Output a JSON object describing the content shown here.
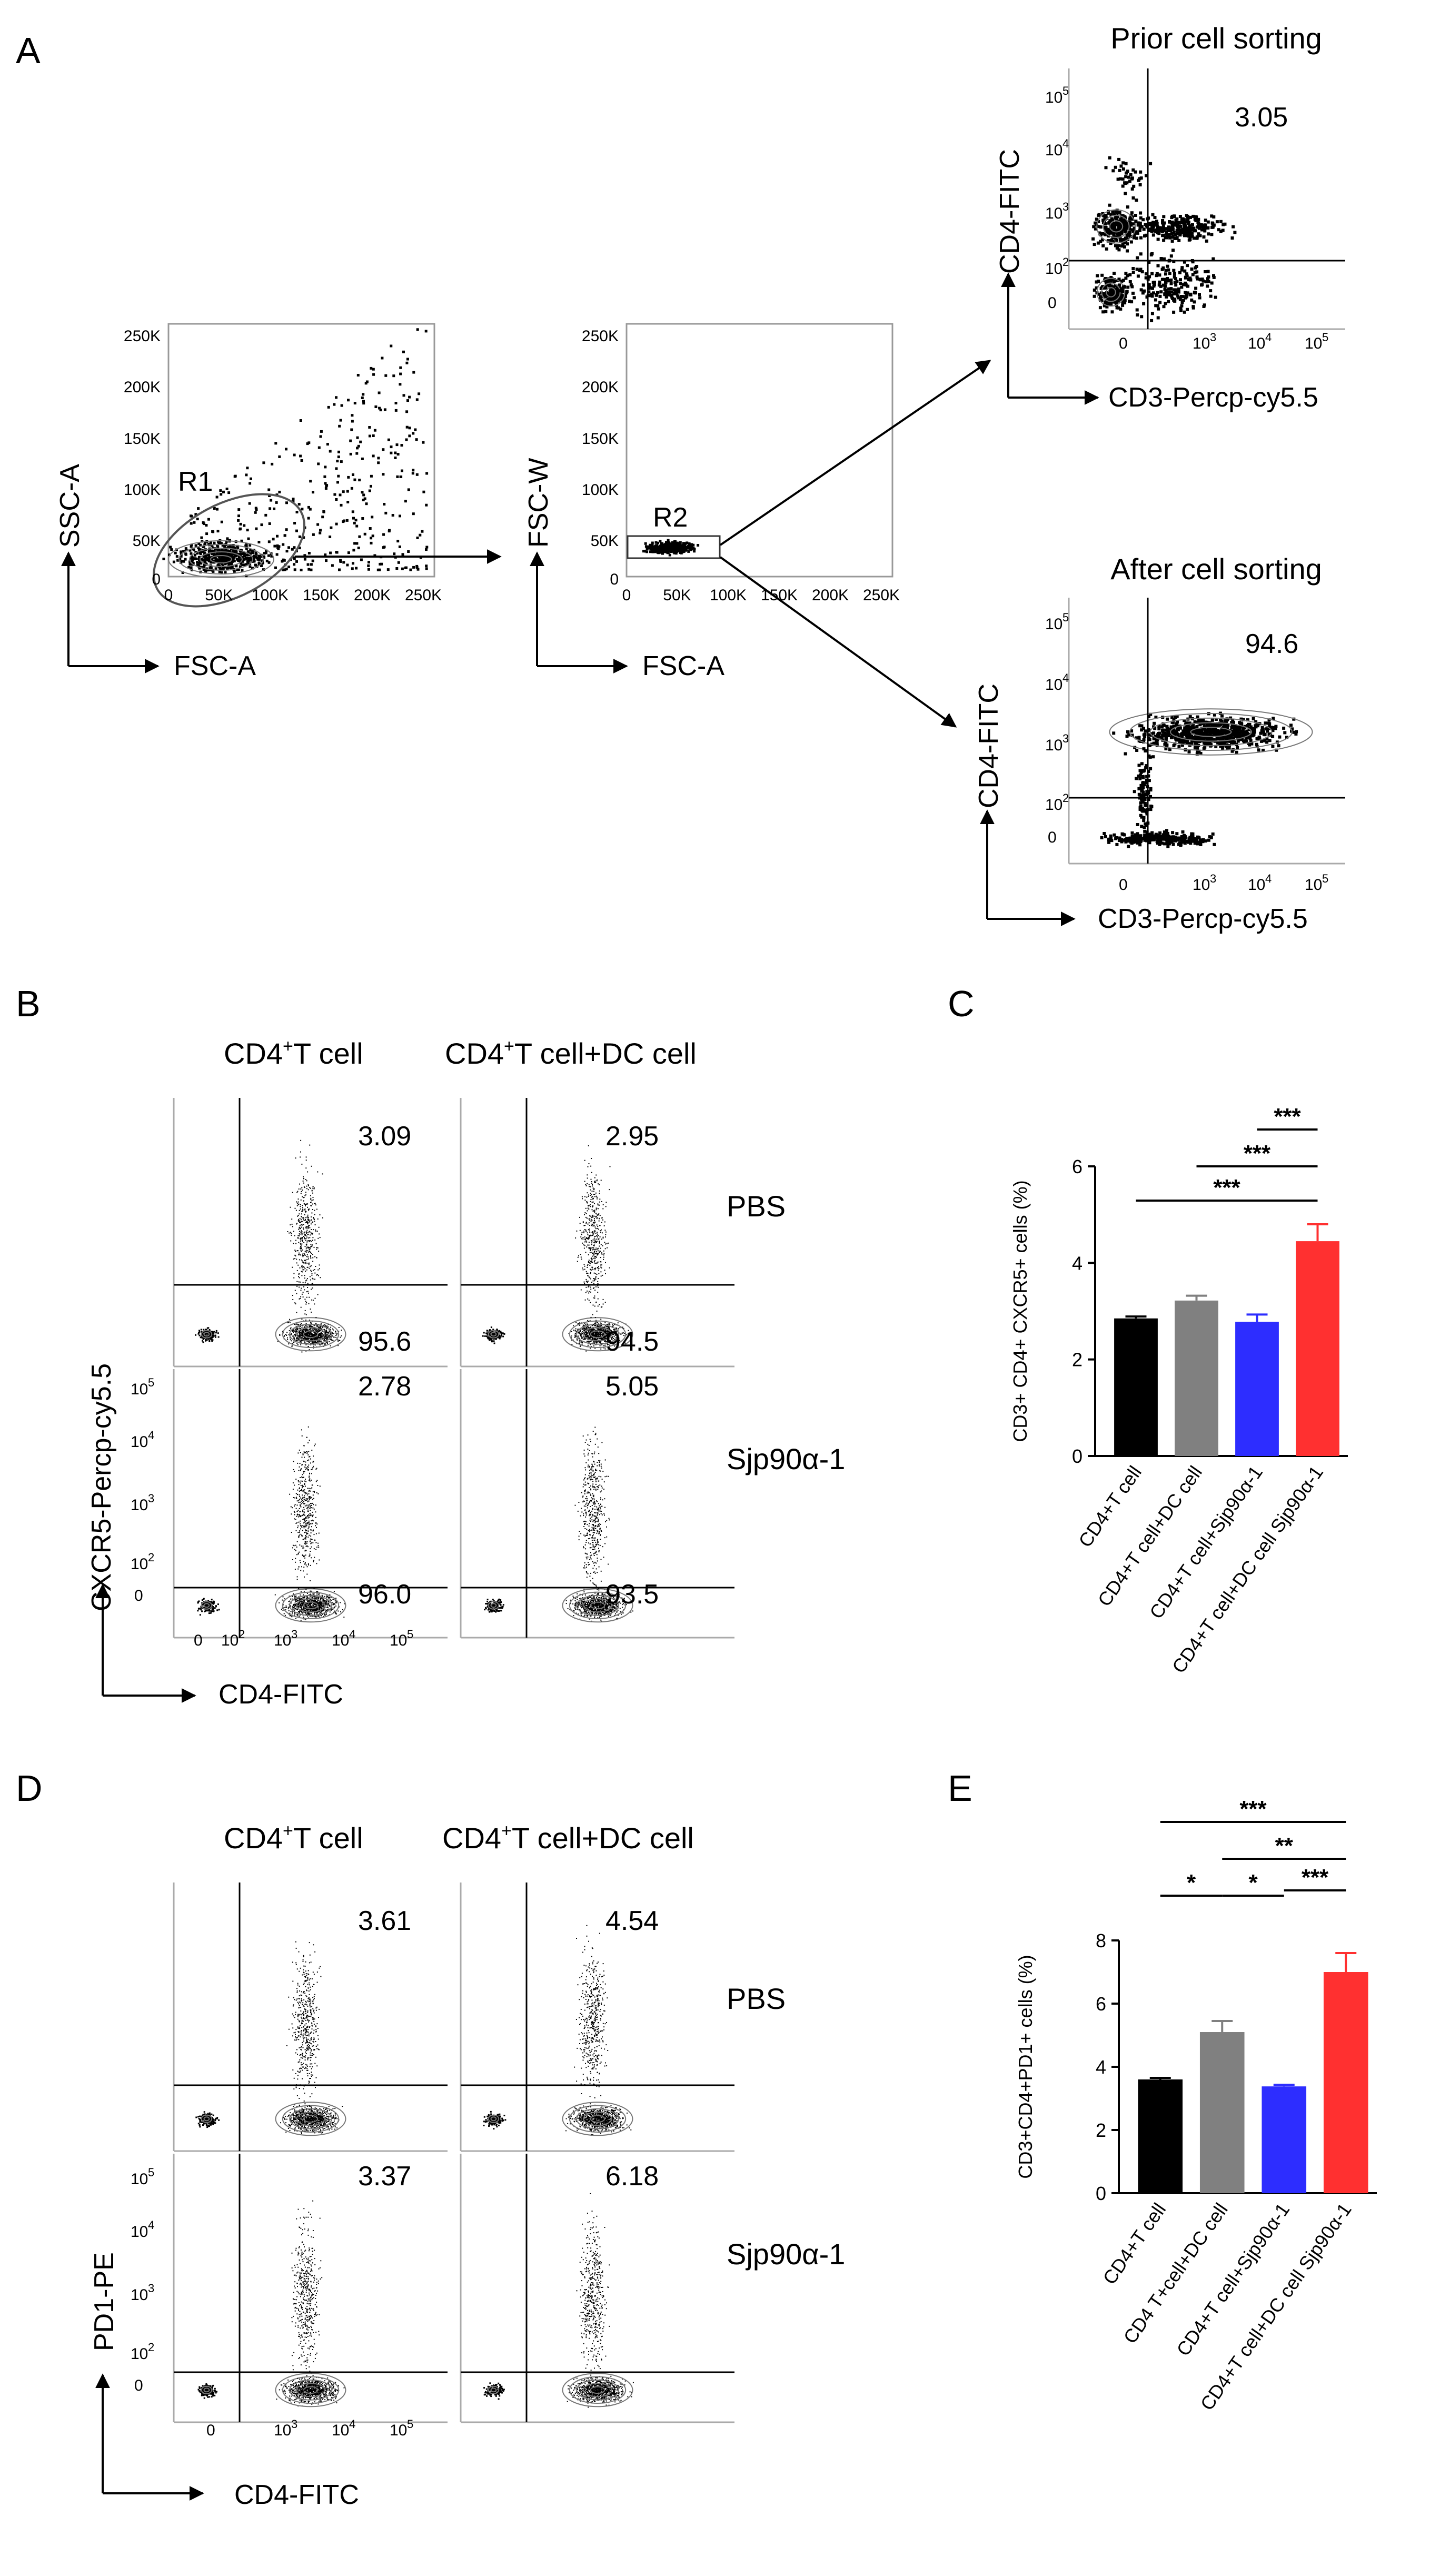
{
  "panel_labels": {
    "a": "A",
    "b": "B",
    "c": "C",
    "d": "D",
    "e": "E"
  },
  "panel_a": {
    "plot1": {
      "xlabel": "FSC-A",
      "ylabel": "SSC-A",
      "gate": "R1",
      "yticks": [
        "250K",
        "200K",
        "150K",
        "100K",
        "50K",
        "0"
      ],
      "xticks": [
        "0",
        "50K",
        "100K",
        "150K",
        "200K",
        "250K"
      ]
    },
    "plot2": {
      "xlabel": "FSC-A",
      "ylabel": "FSC-W",
      "gate": "R2",
      "yticks": [
        "250K",
        "200K",
        "150K",
        "100K",
        "50K",
        "0"
      ],
      "xticks": [
        "0",
        "50K",
        "100K",
        "150K",
        "200K",
        "250K"
      ]
    },
    "prior": {
      "title": "Prior cell sorting",
      "value": "3.05",
      "xlabel": "CD3-Percp-cy5.5",
      "ylabel": "CD4-FITC"
    },
    "after": {
      "title": "After cell sorting",
      "value": "94.6",
      "xlabel": "CD3-Percp-cy5.5",
      "ylabel": "CD4-FITC"
    },
    "log_ticks": {
      "t5": "5",
      "t4": "4",
      "t3": "3",
      "t2": "2",
      "base": "10",
      "zero": "0"
    }
  },
  "panel_b": {
    "col1": "CD4",
    "col1b": "T cell",
    "col2a": "CD4",
    "col2b": "T cell+DC cell",
    "sup": "+",
    "row1": "PBS",
    "row2": "Sjp90α-1",
    "ylabel": "CXCR5-Percp-cy5.5",
    "xlabel": "CD4-FITC",
    "values": {
      "r1c1_top": "3.09",
      "r1c1_bot": "95.6",
      "r1c2_top": "2.95",
      "r1c2_bot": "94.5",
      "r2c1_top": "2.78",
      "r2c1_bot": "96.0",
      "r2c2_top": "5.05",
      "r2c2_bot": "93.5"
    }
  },
  "panel_d": {
    "col1": "CD4",
    "col1b": "T cell",
    "col2a": "CD4",
    "col2b": "T cell+DC cell",
    "sup": "+",
    "row1": "PBS",
    "row2": "Sjp90α-1",
    "ylabel": "PD1-PE",
    "xlabel": "CD4-FITC",
    "values": {
      "r1c1_top": "3.61",
      "r1c2_top": "4.54",
      "r2c1_top": "3.37",
      "r2c2_top": "6.18"
    }
  },
  "chart_data": [
    {
      "type": "bar",
      "title": "C",
      "ylabel": "CD3+ CD4+ CXCR5+ cells (%)",
      "ylim": [
        0,
        6
      ],
      "yticks": [
        0,
        2,
        4,
        6
      ],
      "categories": [
        "CD4+T cell",
        "CD4+T cell+DC cell",
        "CD4+T cell+Sjp90α-1",
        "CD4+T cell+DC cell Sjp90α-1"
      ],
      "values": [
        2.85,
        3.22,
        2.78,
        4.45
      ],
      "errors": [
        0.04,
        0.1,
        0.15,
        0.35
      ],
      "colors": [
        "#000000",
        "#808080",
        "#2d2dff",
        "#ff3030"
      ],
      "significance": [
        {
          "from": 2,
          "to": 3,
          "label": "***"
        },
        {
          "from": 1,
          "to": 3,
          "label": "***"
        },
        {
          "from": 0,
          "to": 3,
          "label": "***"
        }
      ]
    },
    {
      "type": "bar",
      "title": "E",
      "ylabel": "CD3+CD4+PD1+ cells (%)",
      "ylim": [
        0,
        8
      ],
      "yticks": [
        0,
        2,
        4,
        6,
        8
      ],
      "categories": [
        "CD4+T cell",
        "CD4 T+cell+DC cell",
        "CD4+T cell+Sjp90α-1",
        "CD4+T cell+DC cell Sjp90α-1"
      ],
      "values": [
        3.6,
        5.1,
        3.38,
        7.0
      ],
      "errors": [
        0.05,
        0.35,
        0.05,
        0.6
      ],
      "colors": [
        "#000000",
        "#808080",
        "#2d2dff",
        "#ff3030"
      ],
      "significance": [
        {
          "from": 0,
          "to": 1,
          "label": "*"
        },
        {
          "from": 1,
          "to": 2,
          "label": "*"
        },
        {
          "from": 2,
          "to": 3,
          "label": "***"
        },
        {
          "from": 1,
          "to": 3,
          "label": "**"
        },
        {
          "from": 0,
          "to": 3,
          "label": "***"
        }
      ]
    }
  ]
}
